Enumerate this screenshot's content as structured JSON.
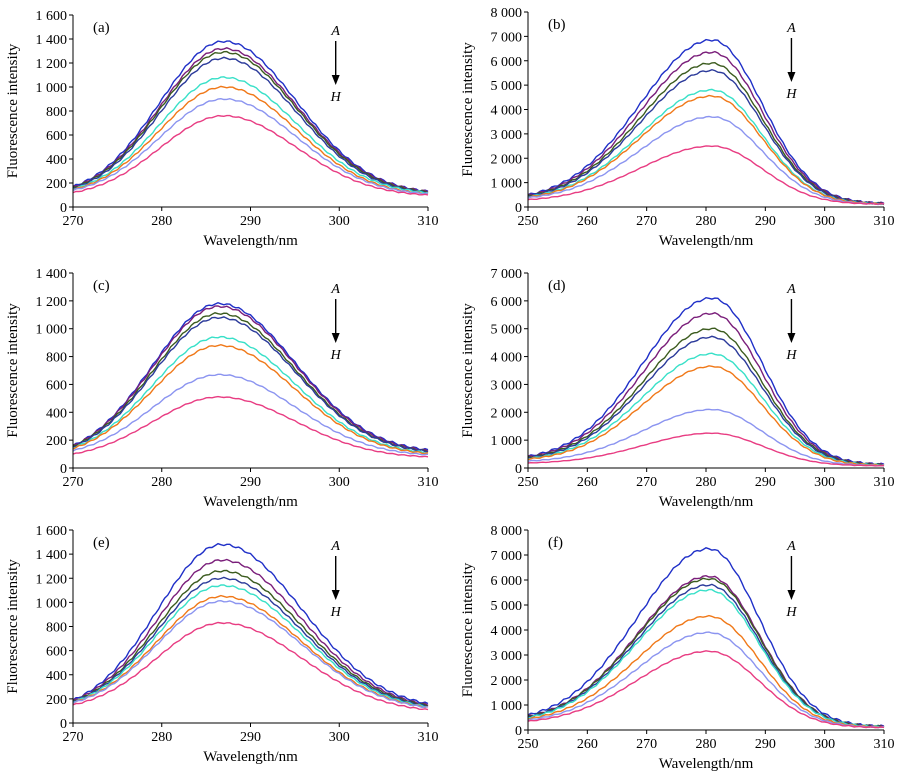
{
  "figure": {
    "ylabel": "Fluorescence intensity",
    "xlabel": "Wavelength/nm",
    "arrow_top": "A",
    "arrow_bottom": "H"
  },
  "chart_data": [
    {
      "type": "line",
      "panel": "(a)",
      "xlabel": "Wavelength/nm",
      "ylabel": "Fluorescence intensity",
      "xlim": [
        270,
        310
      ],
      "ylim": [
        0,
        1600
      ],
      "xticks": [
        270,
        280,
        290,
        300,
        310
      ],
      "yticks": [
        0,
        200,
        400,
        600,
        800,
        1000,
        1200,
        1400,
        1600
      ],
      "xtick_labels": [
        "270",
        "280",
        "290",
        "300",
        "310"
      ],
      "ytick_labels": [
        "0",
        "200",
        "400",
        "600",
        "800",
        "1 000",
        "1 200",
        "1 400",
        "1 600"
      ],
      "curve": {
        "peak_x": 287,
        "width_left": 7.2,
        "width_right": 8.2,
        "x_start": 270,
        "x_end": 310
      },
      "series": [
        {
          "color": "#1f2fc8",
          "peak": 1380,
          "y_start": 170,
          "y_end": 130
        },
        {
          "color": "#7a1e7a",
          "peak": 1320,
          "y_start": 165,
          "y_end": 130
        },
        {
          "color": "#3b5b1e",
          "peak": 1290,
          "y_start": 160,
          "y_end": 125
        },
        {
          "color": "#2b3a9a",
          "peak": 1240,
          "y_start": 155,
          "y_end": 120
        },
        {
          "color": "#38e0c8",
          "peak": 1080,
          "y_start": 150,
          "y_end": 120
        },
        {
          "color": "#f07818",
          "peak": 1000,
          "y_start": 145,
          "y_end": 110
        },
        {
          "color": "#8b94f0",
          "peak": 900,
          "y_start": 140,
          "y_end": 110
        },
        {
          "color": "#e83c82",
          "peak": 760,
          "y_start": 120,
          "y_end": 100
        }
      ]
    },
    {
      "type": "line",
      "panel": "(b)",
      "xlabel": "Wavelength/nm",
      "ylabel": "Fluorescence intensity",
      "xlim": [
        250,
        310
      ],
      "ylim": [
        0,
        8000
      ],
      "xticks": [
        250,
        260,
        270,
        280,
        290,
        300,
        310
      ],
      "yticks": [
        0,
        1000,
        2000,
        3000,
        4000,
        5000,
        6000,
        7000,
        8000
      ],
      "xtick_labels": [
        "250",
        "260",
        "270",
        "280",
        "290",
        "300",
        "310"
      ],
      "ytick_labels": [
        "0",
        "1 000",
        "2 000",
        "3 000",
        "4 000",
        "5 000",
        "6 000",
        "7 000",
        "8 000"
      ],
      "curve": {
        "peak_x": 281,
        "width_left": 12,
        "width_right": 8.5,
        "x_start": 250,
        "x_end": 310
      },
      "series": [
        {
          "color": "#1f2fc8",
          "peak": 6850,
          "y_start": 500,
          "y_end": 150
        },
        {
          "color": "#7a1e7a",
          "peak": 6350,
          "y_start": 480,
          "y_end": 150
        },
        {
          "color": "#3b5b1e",
          "peak": 5900,
          "y_start": 460,
          "y_end": 140
        },
        {
          "color": "#2b3a9a",
          "peak": 5600,
          "y_start": 440,
          "y_end": 140
        },
        {
          "color": "#38e0c8",
          "peak": 4800,
          "y_start": 420,
          "y_end": 130
        },
        {
          "color": "#f07818",
          "peak": 4550,
          "y_start": 400,
          "y_end": 130
        },
        {
          "color": "#8b94f0",
          "peak": 3700,
          "y_start": 380,
          "y_end": 120
        },
        {
          "color": "#e83c82",
          "peak": 2500,
          "y_start": 300,
          "y_end": 120
        }
      ]
    },
    {
      "type": "line",
      "panel": "(c)",
      "xlabel": "Wavelength/nm",
      "ylabel": "Fluorescence intensity",
      "xlim": [
        270,
        310
      ],
      "ylim": [
        0,
        1400
      ],
      "xticks": [
        270,
        280,
        290,
        300,
        310
      ],
      "yticks": [
        0,
        200,
        400,
        600,
        800,
        1000,
        1200,
        1400
      ],
      "xtick_labels": [
        "270",
        "280",
        "290",
        "300",
        "310"
      ],
      "ytick_labels": [
        "0",
        "200",
        "400",
        "600",
        "800",
        "1 000",
        "1 200",
        "1 400"
      ],
      "curve": {
        "peak_x": 286.5,
        "width_left": 7.5,
        "width_right": 8.5,
        "x_start": 270,
        "x_end": 310
      },
      "series": [
        {
          "color": "#1f2fc8",
          "peak": 1180,
          "y_start": 160,
          "y_end": 130
        },
        {
          "color": "#7a1e7a",
          "peak": 1160,
          "y_start": 158,
          "y_end": 125
        },
        {
          "color": "#3b5b1e",
          "peak": 1110,
          "y_start": 155,
          "y_end": 120
        },
        {
          "color": "#2b3a9a",
          "peak": 1080,
          "y_start": 150,
          "y_end": 120
        },
        {
          "color": "#38e0c8",
          "peak": 940,
          "y_start": 145,
          "y_end": 110
        },
        {
          "color": "#f07818",
          "peak": 880,
          "y_start": 140,
          "y_end": 105
        },
        {
          "color": "#8b94f0",
          "peak": 670,
          "y_start": 125,
          "y_end": 95
        },
        {
          "color": "#e83c82",
          "peak": 510,
          "y_start": 100,
          "y_end": 80
        }
      ]
    },
    {
      "type": "line",
      "panel": "(d)",
      "xlabel": "Wavelength/nm",
      "ylabel": "Fluorescence intensity",
      "xlim": [
        250,
        310
      ],
      "ylim": [
        0,
        7000
      ],
      "xticks": [
        250,
        260,
        270,
        280,
        290,
        300,
        310
      ],
      "yticks": [
        0,
        1000,
        2000,
        3000,
        4000,
        5000,
        6000,
        7000
      ],
      "xtick_labels": [
        "250",
        "260",
        "270",
        "280",
        "290",
        "300",
        "310"
      ],
      "ytick_labels": [
        "0",
        "1 000",
        "2 000",
        "3 000",
        "4 000",
        "5 000",
        "6 000",
        "7 000"
      ],
      "curve": {
        "peak_x": 281,
        "width_left": 11.5,
        "width_right": 8.5,
        "x_start": 250,
        "x_end": 310
      },
      "series": [
        {
          "color": "#1f2fc8",
          "peak": 6100,
          "y_start": 420,
          "y_end": 130
        },
        {
          "color": "#7a1e7a",
          "peak": 5550,
          "y_start": 400,
          "y_end": 120
        },
        {
          "color": "#3b5b1e",
          "peak": 5000,
          "y_start": 380,
          "y_end": 120
        },
        {
          "color": "#2b3a9a",
          "peak": 4700,
          "y_start": 360,
          "y_end": 110
        },
        {
          "color": "#38e0c8",
          "peak": 4100,
          "y_start": 340,
          "y_end": 110
        },
        {
          "color": "#f07818",
          "peak": 3650,
          "y_start": 320,
          "y_end": 100
        },
        {
          "color": "#8b94f0",
          "peak": 2100,
          "y_start": 250,
          "y_end": 90
        },
        {
          "color": "#e83c82",
          "peak": 1250,
          "y_start": 180,
          "y_end": 80
        }
      ]
    },
    {
      "type": "line",
      "panel": "(e)",
      "xlabel": "Wavelength/nm",
      "ylabel": "Fluorescence intensity",
      "xlim": [
        270,
        310
      ],
      "ylim": [
        0,
        1600
      ],
      "xticks": [
        270,
        280,
        290,
        300,
        310
      ],
      "yticks": [
        0,
        200,
        400,
        600,
        800,
        1000,
        1200,
        1400,
        1600
      ],
      "xtick_labels": [
        "270",
        "280",
        "290",
        "300",
        "310"
      ],
      "ytick_labels": [
        "0",
        "200",
        "400",
        "600",
        "800",
        "1 000",
        "1 200",
        "1 400",
        "1 600"
      ],
      "curve": {
        "peak_x": 286.8,
        "width_left": 7.3,
        "width_right": 9,
        "x_start": 270,
        "x_end": 310
      },
      "series": [
        {
          "color": "#1f2fc8",
          "peak": 1480,
          "y_start": 190,
          "y_end": 160
        },
        {
          "color": "#7a1e7a",
          "peak": 1350,
          "y_start": 185,
          "y_end": 150
        },
        {
          "color": "#3b5b1e",
          "peak": 1260,
          "y_start": 180,
          "y_end": 145
        },
        {
          "color": "#2b3a9a",
          "peak": 1200,
          "y_start": 178,
          "y_end": 140
        },
        {
          "color": "#38e0c8",
          "peak": 1140,
          "y_start": 175,
          "y_end": 135
        },
        {
          "color": "#f07818",
          "peak": 1050,
          "y_start": 170,
          "y_end": 130
        },
        {
          "color": "#8b94f0",
          "peak": 1010,
          "y_start": 168,
          "y_end": 128
        },
        {
          "color": "#e83c82",
          "peak": 830,
          "y_start": 150,
          "y_end": 110
        }
      ]
    },
    {
      "type": "line",
      "panel": "(f)",
      "xlabel": "Wavelength/nm",
      "ylabel": "Fluorescence intensity",
      "xlim": [
        250,
        310
      ],
      "ylim": [
        0,
        8000
      ],
      "xticks": [
        250,
        260,
        270,
        280,
        290,
        300,
        310
      ],
      "yticks": [
        0,
        1000,
        2000,
        3000,
        4000,
        5000,
        6000,
        7000,
        8000
      ],
      "xtick_labels": [
        "250",
        "260",
        "270",
        "280",
        "290",
        "300",
        "310"
      ],
      "ytick_labels": [
        "0",
        "1 000",
        "2 000",
        "3 000",
        "4 000",
        "5 000",
        "6 000",
        "7 000",
        "8 000"
      ],
      "curve": {
        "peak_x": 280.5,
        "width_left": 12,
        "width_right": 8.5,
        "x_start": 250,
        "x_end": 310
      },
      "series": [
        {
          "color": "#1f2fc8",
          "peak": 7250,
          "y_start": 600,
          "y_end": 150
        },
        {
          "color": "#7a1e7a",
          "peak": 6150,
          "y_start": 550,
          "y_end": 140
        },
        {
          "color": "#3b5b1e",
          "peak": 6050,
          "y_start": 540,
          "y_end": 140
        },
        {
          "color": "#2b3a9a",
          "peak": 5800,
          "y_start": 520,
          "y_end": 130
        },
        {
          "color": "#38e0c8",
          "peak": 5600,
          "y_start": 500,
          "y_end": 130
        },
        {
          "color": "#f07818",
          "peak": 4550,
          "y_start": 450,
          "y_end": 120
        },
        {
          "color": "#8b94f0",
          "peak": 3900,
          "y_start": 400,
          "y_end": 110
        },
        {
          "color": "#e83c82",
          "peak": 3150,
          "y_start": 350,
          "y_end": 100
        }
      ]
    }
  ]
}
